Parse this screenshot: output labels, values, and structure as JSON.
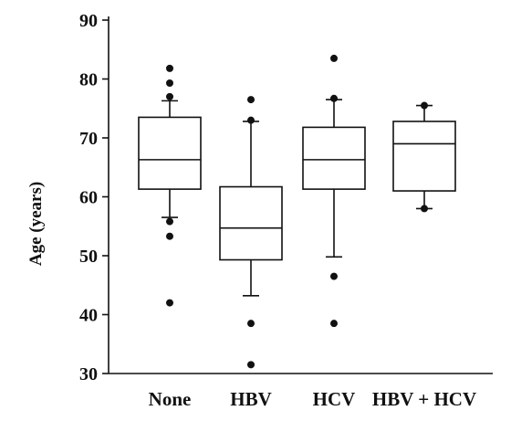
{
  "chart_data": {
    "type": "box",
    "ylabel": "Age (years)",
    "ylim": [
      30,
      90
    ],
    "yticks": [
      "30",
      "40",
      "50",
      "60",
      "70",
      "80",
      "90"
    ],
    "grid": false,
    "categories": [
      "None",
      "HBV",
      "HCV",
      "HBV + HCV"
    ],
    "boxes": [
      {
        "whisker_low": 56.5,
        "q1": 61.3,
        "median": 66.3,
        "q3": 73.5,
        "whisker_high": 76.3,
        "outliers": [
          42.0,
          53.3,
          55.8,
          77.0,
          79.3,
          81.8
        ]
      },
      {
        "whisker_low": 43.2,
        "q1": 49.3,
        "median": 54.7,
        "q3": 61.7,
        "whisker_high": 72.8,
        "outliers": [
          31.5,
          38.5,
          73.0,
          76.5
        ]
      },
      {
        "whisker_low": 49.8,
        "q1": 61.3,
        "median": 66.3,
        "q3": 71.8,
        "whisker_high": 76.5,
        "outliers": [
          38.5,
          46.5,
          76.7,
          83.5
        ]
      },
      {
        "whisker_low": 58.0,
        "q1": 61.0,
        "median": 69.0,
        "q3": 72.8,
        "whisker_high": 75.5,
        "outliers": [
          58.0,
          75.5
        ]
      }
    ]
  }
}
